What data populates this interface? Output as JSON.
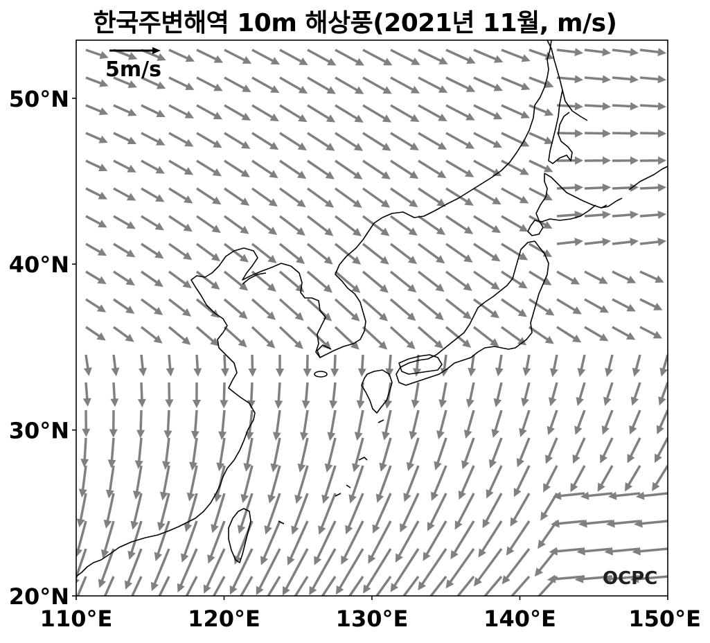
{
  "title": "한국주변해역 10m 해상풍(2021년 11월, m/s)",
  "map": {
    "lon_range": [
      110,
      150
    ],
    "lat_range": [
      20,
      53.5
    ],
    "x_ticks": [
      {
        "value": 110,
        "label": "110°E"
      },
      {
        "value": 120,
        "label": "120°E"
      },
      {
        "value": 130,
        "label": "130°E"
      },
      {
        "value": 140,
        "label": "140°E"
      },
      {
        "value": 150,
        "label": "150°E"
      }
    ],
    "y_ticks": [
      {
        "value": 20,
        "label": "20°N"
      },
      {
        "value": 30,
        "label": "30°N"
      },
      {
        "value": 40,
        "label": "40°N"
      },
      {
        "value": 50,
        "label": "50°N"
      }
    ],
    "reference_vector": {
      "speed": 5,
      "label": "5m/s"
    },
    "watermark": "OCPC",
    "arrow_color": "#808080",
    "coast_color": "#000000"
  }
}
